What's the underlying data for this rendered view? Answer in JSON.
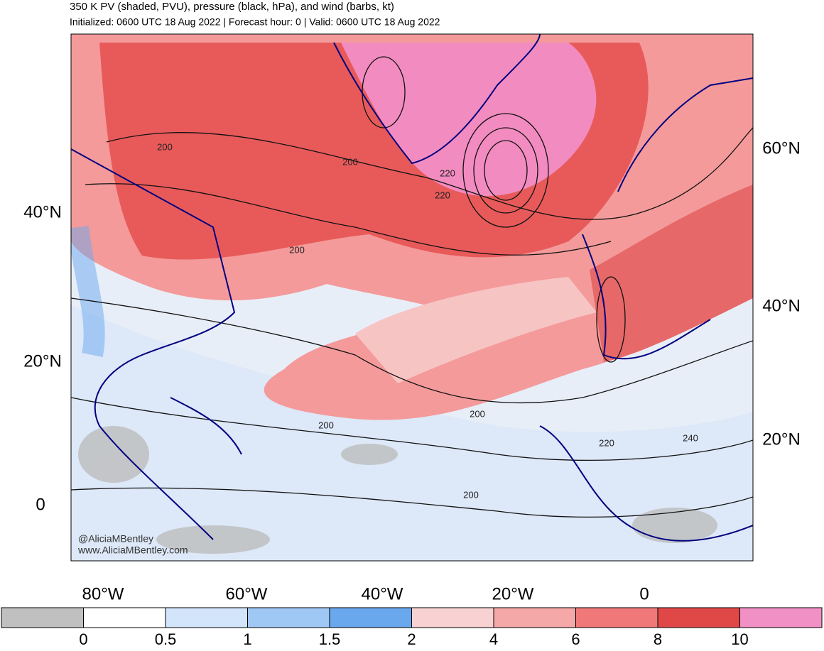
{
  "header": {
    "title": "350 K PV (shaded, PVU), pressure (black, hPa), and wind (barbs, kt)",
    "subtitle": "Initialized: 0600 UTC 18 Aug 2022 | Forecast hour: 0 | Valid: 0600 UTC 18 Aug 2022"
  },
  "map": {
    "lat_labels_left": [
      "40°N",
      "20°N",
      "0"
    ],
    "lat_labels_right": [
      "60°N",
      "40°N",
      "20°N"
    ],
    "lon_labels": [
      "80°W",
      "60°W",
      "40°W",
      "20°W",
      "0"
    ],
    "contour_labels": [
      "200",
      "200",
      "200",
      "220",
      "220",
      "200",
      "200",
      "220",
      "240",
      "200"
    ],
    "watermark": [
      "@AliciaMBentley",
      "www.AliciaMBentley.com"
    ]
  },
  "colorbar": {
    "labels": [
      "0",
      "0.5",
      "1",
      "1.5",
      "2",
      "4",
      "6",
      "8",
      "10"
    ]
  }
}
